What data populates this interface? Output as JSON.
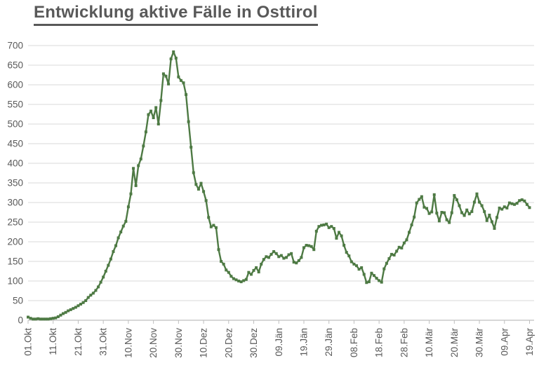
{
  "title": "Entwicklung aktive Fälle in Osttirol",
  "colors": {
    "line": "#4e7a44",
    "gridline": "#d9d9d9",
    "axis": "#bfbfbf",
    "tick": "#bfbfbf",
    "label_text": "#595959",
    "title_text": "#595959",
    "background": "#ffffff"
  },
  "chart_data": {
    "type": "line",
    "title": "Entwicklung aktive Fälle in Osttirol",
    "frequency": "daily",
    "x_start_label": "01.Okt",
    "x_end_label": "19.Apr",
    "x_tick_interval_days": 10,
    "x_tick_labels": [
      "01.Okt",
      "11.Okt",
      "21.Okt",
      "31.Okt",
      "10.Nov",
      "20.Nov",
      "30.Nov",
      "10.Dez",
      "20.Dez",
      "30.Dez",
      "09.Jän",
      "19.Jän",
      "29.Jän",
      "08.Feb",
      "18.Feb",
      "28.Feb",
      "10.Mär",
      "20.Mär",
      "30.Mär",
      "09.Apr",
      "19.Apr"
    ],
    "y_tick_labels": [
      "0",
      "50",
      "100",
      "150",
      "200",
      "250",
      "300",
      "350",
      "400",
      "450",
      "500",
      "550",
      "600",
      "650",
      "700"
    ],
    "ylim": [
      0,
      700
    ],
    "y_tick_step": 50,
    "grid": "horizontal",
    "legend": "none",
    "marker": "square",
    "xlabel": "",
    "ylabel": "",
    "values": [
      8,
      5,
      3,
      3,
      4,
      3,
      3,
      3,
      3,
      4,
      5,
      6,
      9,
      13,
      17,
      20,
      24,
      27,
      30,
      33,
      37,
      41,
      45,
      50,
      58,
      64,
      69,
      76,
      85,
      97,
      110,
      125,
      140,
      156,
      175,
      190,
      210,
      225,
      240,
      252,
      289,
      322,
      387,
      343,
      394,
      411,
      444,
      480,
      524,
      533,
      516,
      542,
      500,
      560,
      628,
      622,
      602,
      666,
      684,
      668,
      620,
      611,
      605,
      575,
      506,
      441,
      376,
      346,
      334,
      349,
      328,
      305,
      262,
      238,
      242,
      236,
      180,
      150,
      143,
      128,
      122,
      112,
      106,
      103,
      100,
      98,
      101,
      104,
      122,
      117,
      127,
      134,
      123,
      143,
      155,
      162,
      160,
      168,
      175,
      170,
      162,
      165,
      158,
      160,
      167,
      170,
      148,
      146,
      152,
      160,
      185,
      191,
      190,
      188,
      180,
      227,
      239,
      242,
      243,
      245,
      236,
      239,
      234,
      209,
      224,
      215,
      191,
      173,
      164,
      149,
      143,
      139,
      130,
      134,
      117,
      96,
      98,
      120,
      114,
      107,
      101,
      97,
      131,
      145,
      157,
      168,
      166,
      176,
      186,
      184,
      197,
      205,
      224,
      243,
      263,
      299,
      308,
      315,
      288,
      285,
      272,
      276,
      320,
      273,
      253,
      275,
      274,
      256,
      249,
      274,
      318,
      307,
      292,
      274,
      267,
      281,
      271,
      277,
      301,
      322,
      301,
      292,
      277,
      254,
      268,
      251,
      234,
      262,
      286,
      283,
      289,
      286,
      299,
      297,
      295,
      298,
      305,
      307,
      304,
      295,
      287
    ]
  }
}
